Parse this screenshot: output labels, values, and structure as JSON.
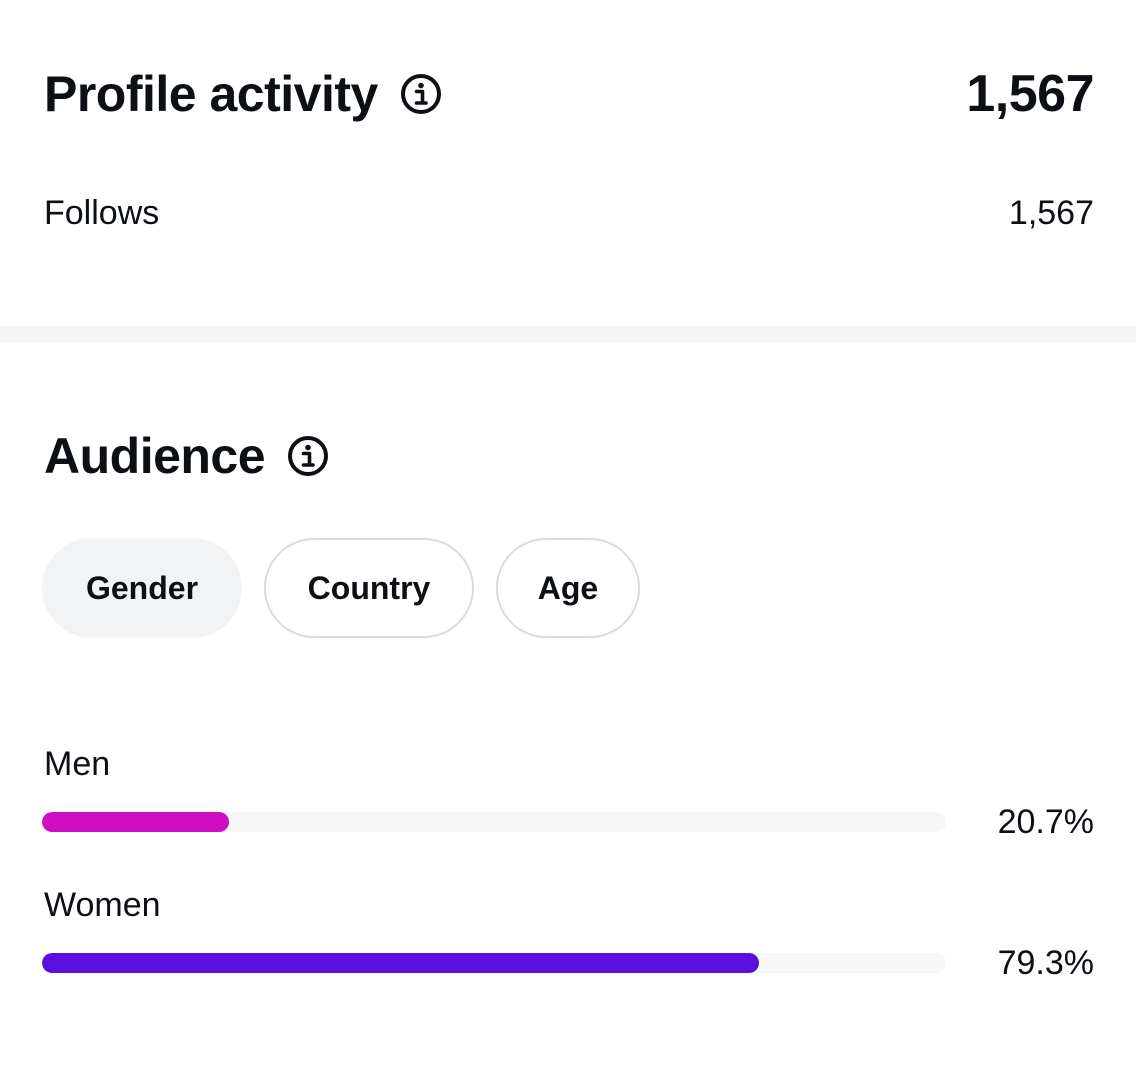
{
  "profile_activity": {
    "title": "Profile activity",
    "total": "1,567",
    "metrics": [
      {
        "label": "Follows",
        "value": "1,567"
      }
    ],
    "info_icon": "info-icon"
  },
  "audience": {
    "title": "Audience",
    "info_icon": "info-icon",
    "tabs": [
      {
        "label": "Gender",
        "active": true
      },
      {
        "label": "Country",
        "active": false
      },
      {
        "label": "Age",
        "active": false
      }
    ],
    "breakdown": [
      {
        "label": "Men",
        "value_text": "20.7%",
        "percent": 20.7,
        "color": "#d10dc4"
      },
      {
        "label": "Women",
        "value_text": "79.3%",
        "percent": 79.3,
        "color": "#5b0fdc"
      }
    ]
  }
}
